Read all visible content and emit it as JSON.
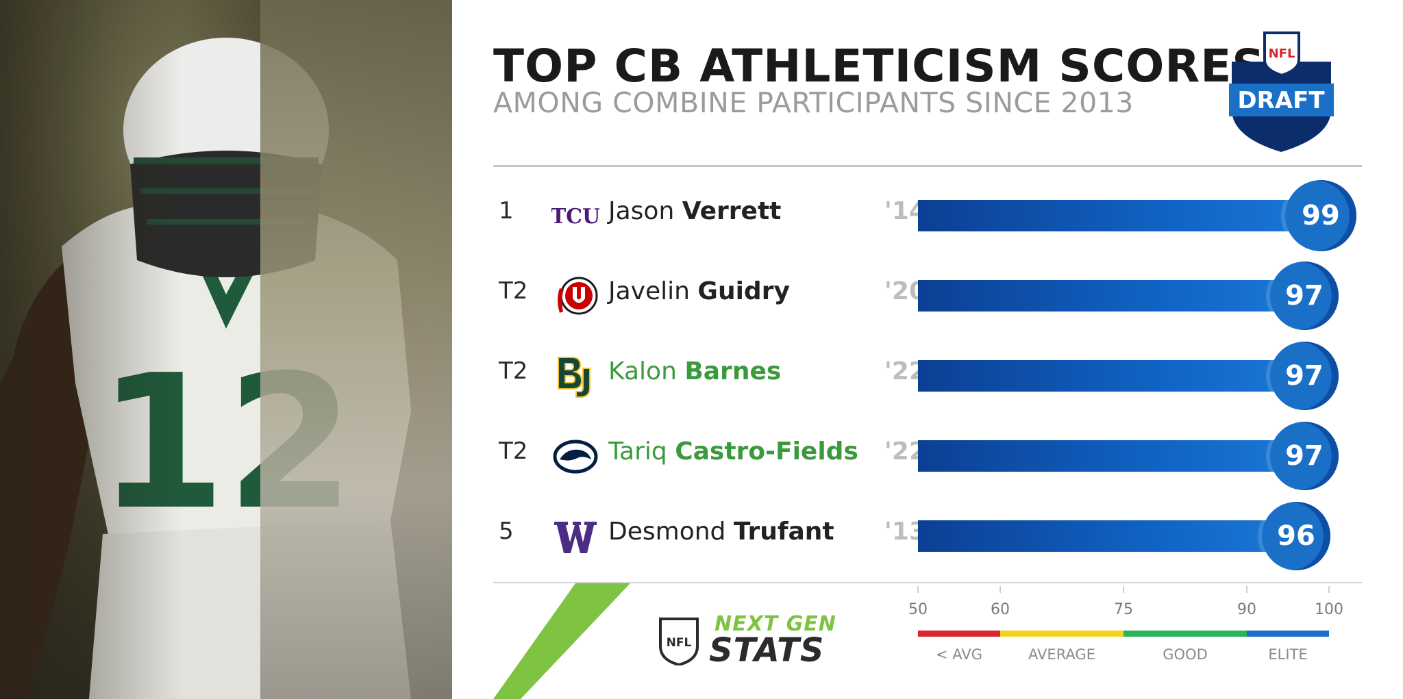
{
  "header": {
    "title": "TOP CB ATHLETICISM SCORES",
    "subtitle": "AMONG COMBINE PARTICIPANTS SINCE 2013"
  },
  "logos": {
    "draft_top": "NFL",
    "draft_word": "DRAFT",
    "ngs_shield": "NFL",
    "ngs_line1": "NEXT GEN",
    "ngs_line2": "STATS"
  },
  "chart_data": {
    "type": "bar",
    "orientation": "horizontal",
    "title": "TOP CB ATHLETICISM SCORES",
    "subtitle": "AMONG COMBINE PARTICIPANTS SINCE 2013",
    "xlim": [
      50,
      100
    ],
    "xticks": [
      50,
      60,
      75,
      90,
      100
    ],
    "rows": [
      {
        "rank": "1",
        "first": "Jason",
        "last": "Verrett",
        "school": "TCU",
        "year": "'14",
        "value": 99,
        "name_color": "#222222"
      },
      {
        "rank": "T2",
        "first": "Javelin",
        "last": "Guidry",
        "school": "Utah",
        "year": "'20",
        "value": 97,
        "name_color": "#222222"
      },
      {
        "rank": "T2",
        "first": "Kalon",
        "last": "Barnes",
        "school": "Baylor",
        "year": "'22",
        "value": 97,
        "name_color": "#3a9a3c"
      },
      {
        "rank": "T2",
        "first": "Tariq",
        "last": "Castro-Fields",
        "school": "Penn State",
        "year": "'22",
        "value": 97,
        "name_color": "#3a9a3c"
      },
      {
        "rank": "5",
        "first": "Desmond",
        "last": "Trufant",
        "school": "Washington",
        "year": "'13",
        "value": 96,
        "name_color": "#222222"
      }
    ],
    "scale_bands": [
      {
        "label": "< AVG",
        "from": 50,
        "to": 60,
        "color": "#d8262f"
      },
      {
        "label": "AVERAGE",
        "from": 60,
        "to": 75,
        "color": "#f3d320"
      },
      {
        "label": "GOOD",
        "from": 75,
        "to": 90,
        "color": "#2cb558"
      },
      {
        "label": "ELITE",
        "from": 90,
        "to": 100,
        "color": "#1a6fc7"
      }
    ]
  },
  "school_logos": {
    "tcu": "TCU"
  }
}
